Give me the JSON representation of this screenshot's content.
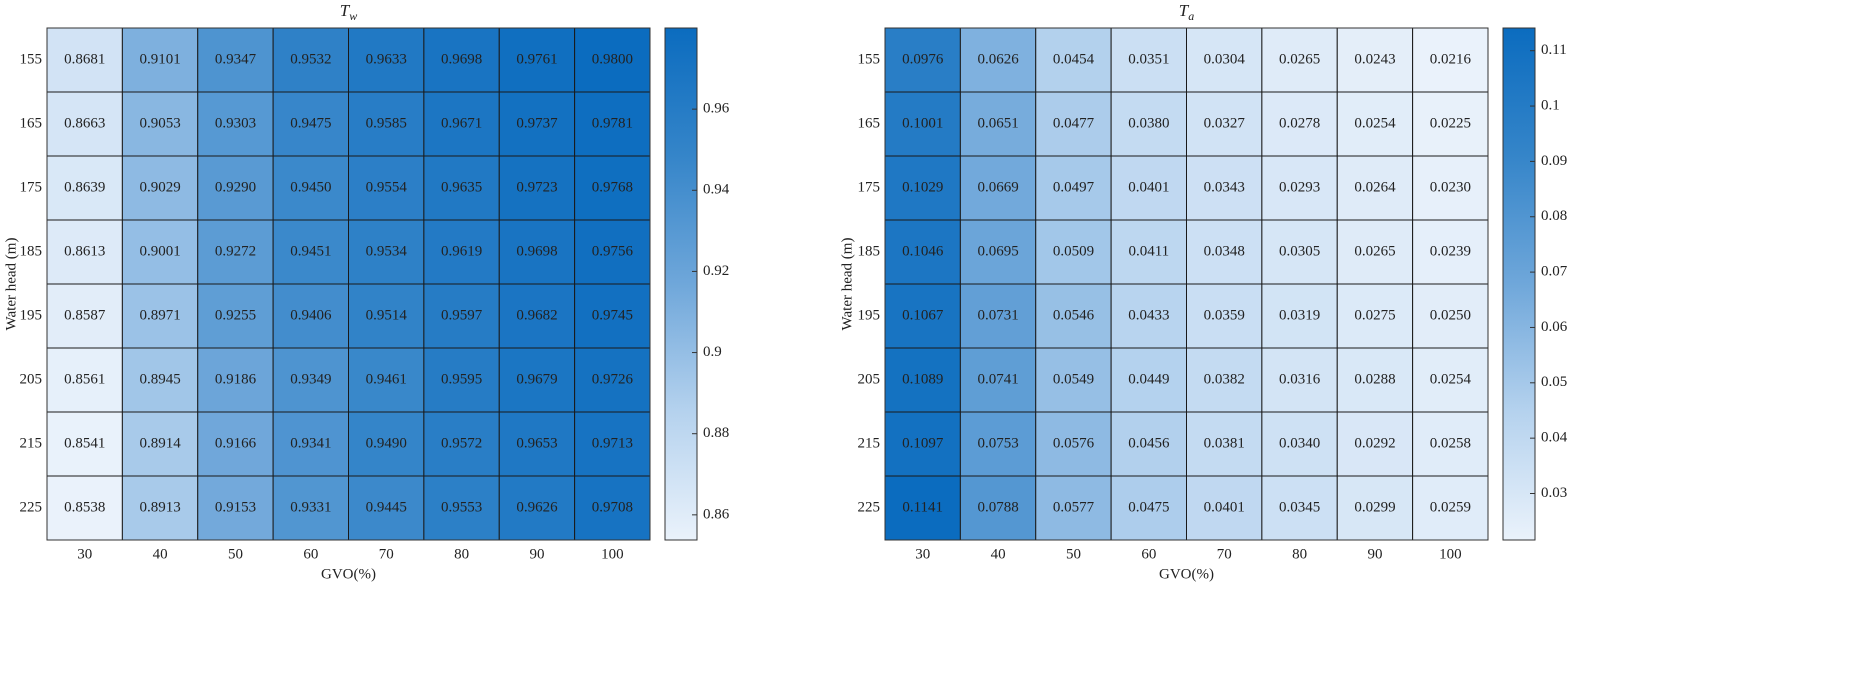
{
  "chart_data": [
    {
      "type": "heatmap",
      "title": {
        "text": "T",
        "subscript": "w"
      },
      "x_label": "GVO(%)",
      "y_label": "Water head (m)",
      "x_categories": [
        30,
        40,
        50,
        60,
        70,
        80,
        90,
        100
      ],
      "y_categories": [
        155,
        165,
        175,
        185,
        195,
        205,
        215,
        225
      ],
      "values": [
        [
          0.8681,
          0.9101,
          0.9347,
          0.9532,
          0.9633,
          0.9698,
          0.9761,
          0.98
        ],
        [
          0.8663,
          0.9053,
          0.9303,
          0.9475,
          0.9585,
          0.9671,
          0.9737,
          0.9781
        ],
        [
          0.8639,
          0.9029,
          0.929,
          0.945,
          0.9554,
          0.9635,
          0.9723,
          0.9768
        ],
        [
          0.8613,
          0.9001,
          0.9272,
          0.9451,
          0.9534,
          0.9619,
          0.9698,
          0.9756
        ],
        [
          0.8587,
          0.8971,
          0.9255,
          0.9406,
          0.9514,
          0.9597,
          0.9682,
          0.9745
        ],
        [
          0.8561,
          0.8945,
          0.9186,
          0.9349,
          0.9461,
          0.9595,
          0.9679,
          0.9726
        ],
        [
          0.8541,
          0.8914,
          0.9166,
          0.9341,
          0.949,
          0.9572,
          0.9653,
          0.9713
        ],
        [
          0.8538,
          0.8913,
          0.9153,
          0.9331,
          0.9445,
          0.9553,
          0.9626,
          0.9708
        ]
      ],
      "value_labels": [
        [
          "0.8681",
          "0.9101",
          "0.9347",
          "0.9532",
          "0.9633",
          "0.9698",
          "0.9761",
          "0.9800"
        ],
        [
          "0.8663",
          "0.9053",
          "0.9303",
          "0.9475",
          "0.9585",
          "0.9671",
          "0.9737",
          "0.9781"
        ],
        [
          "0.8639",
          "0.9029",
          "0.9290",
          "0.9450",
          "0.9554",
          "0.9635",
          "0.9723",
          "0.9768"
        ],
        [
          "0.8613",
          "0.9001",
          "0.9272",
          "0.9451",
          "0.9534",
          "0.9619",
          "0.9698",
          "0.9756"
        ],
        [
          "0.8587",
          "0.8971",
          "0.9255",
          "0.9406",
          "0.9514",
          "0.9597",
          "0.9682",
          "0.9745"
        ],
        [
          "0.8561",
          "0.8945",
          "0.9186",
          "0.9349",
          "0.9461",
          "0.9595",
          "0.9679",
          "0.9726"
        ],
        [
          "0.8541",
          "0.8914",
          "0.9166",
          "0.9341",
          "0.9490",
          "0.9572",
          "0.9653",
          "0.9713"
        ],
        [
          "0.8538",
          "0.8913",
          "0.9153",
          "0.9331",
          "0.9445",
          "0.9553",
          "0.9626",
          "0.9708"
        ]
      ],
      "clim": [
        0.8538,
        0.98
      ],
      "cticks": [
        0.86,
        0.88,
        0.9,
        0.92,
        0.94,
        0.96
      ],
      "colormap": [
        "#eaf2fb",
        "#b5d2ee",
        "#6fa7da",
        "#3585c9",
        "#0b6cbf"
      ]
    },
    {
      "type": "heatmap",
      "title": {
        "text": "T",
        "subscript": "a"
      },
      "x_label": "GVO(%)",
      "y_label": "Water head (m)",
      "x_categories": [
        30,
        40,
        50,
        60,
        70,
        80,
        90,
        100
      ],
      "y_categories": [
        155,
        165,
        175,
        185,
        195,
        205,
        215,
        225
      ],
      "values": [
        [
          0.0976,
          0.0626,
          0.0454,
          0.0351,
          0.0304,
          0.0265,
          0.0243,
          0.0216
        ],
        [
          0.1001,
          0.0651,
          0.0477,
          0.038,
          0.0327,
          0.0278,
          0.0254,
          0.0225
        ],
        [
          0.1029,
          0.0669,
          0.0497,
          0.0401,
          0.0343,
          0.0293,
          0.0264,
          0.023
        ],
        [
          0.1046,
          0.0695,
          0.0509,
          0.0411,
          0.0348,
          0.0305,
          0.0265,
          0.0239
        ],
        [
          0.1067,
          0.0731,
          0.0546,
          0.0433,
          0.0359,
          0.0319,
          0.0275,
          0.025
        ],
        [
          0.1089,
          0.0741,
          0.0549,
          0.0449,
          0.0382,
          0.0316,
          0.0288,
          0.0254
        ],
        [
          0.1097,
          0.0753,
          0.0576,
          0.0456,
          0.0381,
          0.034,
          0.0292,
          0.0258
        ],
        [
          0.1141,
          0.0788,
          0.0577,
          0.0475,
          0.0401,
          0.0345,
          0.0299,
          0.0259
        ]
      ],
      "value_labels": [
        [
          "0.0976",
          "0.0626",
          "0.0454",
          "0.0351",
          "0.0304",
          "0.0265",
          "0.0243",
          "0.0216"
        ],
        [
          "0.1001",
          "0.0651",
          "0.0477",
          "0.0380",
          "0.0327",
          "0.0278",
          "0.0254",
          "0.0225"
        ],
        [
          "0.1029",
          "0.0669",
          "0.0497",
          "0.0401",
          "0.0343",
          "0.0293",
          "0.0264",
          "0.0230"
        ],
        [
          "0.1046",
          "0.0695",
          "0.0509",
          "0.0411",
          "0.0348",
          "0.0305",
          "0.0265",
          "0.0239"
        ],
        [
          "0.1067",
          "0.0731",
          "0.0546",
          "0.0433",
          "0.0359",
          "0.0319",
          "0.0275",
          "0.0250"
        ],
        [
          "0.1089",
          "0.0741",
          "0.0549",
          "0.0449",
          "0.0382",
          "0.0316",
          "0.0288",
          "0.0254"
        ],
        [
          "0.1097",
          "0.0753",
          "0.0576",
          "0.0456",
          "0.0381",
          "0.0340",
          "0.0292",
          "0.0258"
        ],
        [
          "0.1141",
          "0.0788",
          "0.0577",
          "0.0475",
          "0.0401",
          "0.0345",
          "0.0299",
          "0.0259"
        ]
      ],
      "clim": [
        0.0216,
        0.1141
      ],
      "cticks": [
        0.03,
        0.04,
        0.05,
        0.06,
        0.07,
        0.08,
        0.09,
        0.1,
        0.11
      ],
      "colormap": [
        "#eaf2fb",
        "#b5d2ee",
        "#6fa7da",
        "#3585c9",
        "#0b6cbf"
      ]
    }
  ]
}
